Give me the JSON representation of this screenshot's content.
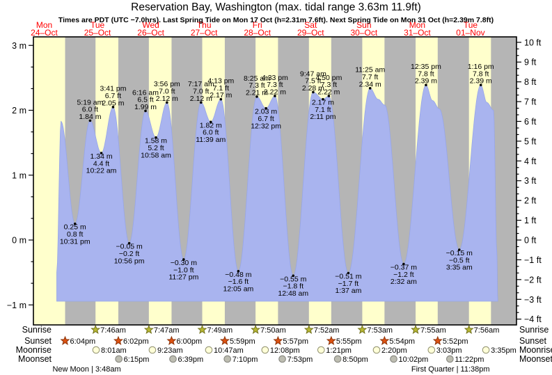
{
  "title": "Reservation Bay, Washington (max. tidal range 3.63m 11.9ft)",
  "subtitle": "Times are PDT (UTC −7.0hrs). Last Spring Tide on Mon 17 Oct (h=2.31m 7.6ft). Next Spring Tide on Mon 31 Oct (h=2.39m 7.8ft)",
  "colors": {
    "day_band": "#ffffcc",
    "night_band": "#b5b5b5",
    "tide_fill": "#a9b4ef",
    "tide_edge": "#97a6e8",
    "date_label": "#ff0000",
    "text": "#000000",
    "sunrise_star_fill": "#b8b832",
    "sunrise_star_stroke": "#71711c",
    "sunset_star_fill": "#dd5212",
    "sunset_star_stroke": "#8b3208",
    "moonrise_circle_fill": "#ffffd8",
    "moonrise_circle_stroke": "#8f8f6e",
    "moonset_circle_fill": "#bdbdb1",
    "moonset_circle_stroke": "#80807a"
  },
  "day_labels": [
    {
      "name": "Mon",
      "date": "24–Oct"
    },
    {
      "name": "Tue",
      "date": "25–Oct"
    },
    {
      "name": "Wed",
      "date": "26–Oct"
    },
    {
      "name": "Thu",
      "date": "27–Oct"
    },
    {
      "name": "Fri",
      "date": "28–Oct"
    },
    {
      "name": "Sat",
      "date": "29–Oct"
    },
    {
      "name": "Sun",
      "date": "30–Oct"
    },
    {
      "name": "Mon",
      "date": "31–Oct"
    },
    {
      "name": "Tue",
      "date": "01–Nov"
    }
  ],
  "axes": {
    "left_ticks": [
      {
        "v": 3,
        "label": "3 m"
      },
      {
        "v": 2,
        "label": "2 m"
      },
      {
        "v": 1,
        "label": "1 m"
      },
      {
        "v": 0,
        "label": "0 m"
      },
      {
        "v": -1,
        "label": "−1 m"
      }
    ],
    "right_ticks": [
      {
        "v": 10,
        "label": "10 ft"
      },
      {
        "v": 9,
        "label": "9 ft"
      },
      {
        "v": 8,
        "label": "8 ft"
      },
      {
        "v": 7,
        "label": "7 ft"
      },
      {
        "v": 6,
        "label": "6 ft"
      },
      {
        "v": 5,
        "label": "5 ft"
      },
      {
        "v": 4,
        "label": "4 ft"
      },
      {
        "v": 3,
        "label": "3 ft"
      },
      {
        "v": 2,
        "label": "2 ft"
      },
      {
        "v": 1,
        "label": "1 ft"
      },
      {
        "v": 0,
        "label": "0 ft"
      },
      {
        "v": -1,
        "label": "−1 ft"
      },
      {
        "v": -2,
        "label": "−2 ft"
      },
      {
        "v": -3,
        "label": "−3 ft"
      },
      {
        "v": -4,
        "label": "−4 ft"
      }
    ]
  },
  "chart_data": {
    "type": "area",
    "x_axis": "time, Mon 24 Oct through Tue 01 Nov (PDT)",
    "ylabel_left": "height (m)",
    "ylabel_right": "height (ft)",
    "ylim_m": [
      -1.3,
      3.1
    ],
    "tide_events": [
      {
        "day": 0,
        "hour": 14.3,
        "level_m": -0.5,
        "kind": "edge"
      },
      {
        "day": 0,
        "hour": 16.2,
        "level_m": 1.83,
        "kind": "shape"
      },
      {
        "day": 0,
        "hour": 22.52,
        "level_m": 0.25,
        "kind": "low",
        "lines": [
          "0.25 m",
          "0.8 ft",
          "10:31 pm"
        ]
      },
      {
        "day": 1,
        "hour": 5.32,
        "level_m": 1.84,
        "kind": "high",
        "lines": [
          "5:19 am",
          "6.0 ft",
          "1.84 m"
        ]
      },
      {
        "day": 1,
        "hour": 10.37,
        "level_m": 1.34,
        "kind": "low",
        "lines": [
          "1.34 m",
          "4.4 ft",
          "10:22 am"
        ]
      },
      {
        "day": 1,
        "hour": 15.68,
        "level_m": 2.05,
        "kind": "high",
        "lines": [
          "3:41 pm",
          "6.7 ft",
          "2.05 m"
        ]
      },
      {
        "day": 1,
        "hour": 22.93,
        "level_m": -0.05,
        "kind": "low",
        "lines": [
          "−0.05 m",
          "−0.2 ft",
          "10:56 pm"
        ]
      },
      {
        "day": 2,
        "hour": 6.27,
        "level_m": 1.99,
        "kind": "high",
        "lines": [
          "6:16 am",
          "6.5 ft",
          "1.99 m"
        ]
      },
      {
        "day": 2,
        "hour": 10.97,
        "level_m": 1.58,
        "kind": "low",
        "lines": [
          "1.58 m",
          "5.2 ft",
          "10:58 am"
        ]
      },
      {
        "day": 2,
        "hour": 15.93,
        "level_m": 2.12,
        "kind": "high",
        "lines": [
          "3:56 pm",
          "7.0 ft",
          "2.12 m"
        ]
      },
      {
        "day": 2,
        "hour": 23.45,
        "level_m": -0.3,
        "kind": "low",
        "lines": [
          "−0.30 m",
          "−1.0 ft",
          "11:27 pm"
        ]
      },
      {
        "day": 3,
        "hour": 7.28,
        "level_m": 2.12,
        "kind": "high",
        "lines": [
          "7:17 am",
          "7.0 ft",
          "2.12 m"
        ]
      },
      {
        "day": 3,
        "hour": 11.65,
        "level_m": 1.82,
        "kind": "low",
        "lines": [
          "1.82 m",
          "6.0 ft",
          "11:39 am"
        ]
      },
      {
        "day": 3,
        "hour": 16.22,
        "level_m": 2.17,
        "kind": "high",
        "lines": [
          "4:13 pm",
          "7.1 ft",
          "2.17 m"
        ]
      },
      {
        "day": 4,
        "hour": 0.08,
        "level_m": -0.48,
        "kind": "low",
        "lines": [
          "−0.48 m",
          "−1.6 ft",
          "12:05 am"
        ]
      },
      {
        "day": 4,
        "hour": 8.42,
        "level_m": 2.21,
        "kind": "high",
        "lines": [
          "8:25 am",
          "7.3 ft",
          "2.21 m"
        ]
      },
      {
        "day": 4,
        "hour": 12.53,
        "level_m": 2.03,
        "kind": "low",
        "lines": [
          "2.03 m",
          "6.7 ft",
          "12:32 pm"
        ]
      },
      {
        "day": 4,
        "hour": 16.55,
        "level_m": 2.22,
        "kind": "high",
        "lines": [
          "4:33 pm",
          "7.3 ft",
          "2.22 m"
        ]
      },
      {
        "day": 5,
        "hour": 0.8,
        "level_m": -0.55,
        "kind": "low",
        "lines": [
          "−0.55 m",
          "−1.8 ft",
          "12:48 am"
        ]
      },
      {
        "day": 5,
        "hour": 9.78,
        "level_m": 2.28,
        "kind": "high",
        "lines": [
          "9:47 am",
          "7.5 ft",
          "2.28 m"
        ]
      },
      {
        "day": 5,
        "hour": 14.18,
        "level_m": 2.17,
        "kind": "low",
        "lines": [
          "2.17 m",
          "7.1 ft",
          "2:11 pm"
        ]
      },
      {
        "day": 5,
        "hour": 16.83,
        "level_m": 2.22,
        "kind": "high",
        "lines": [
          "4:50 pm",
          "7.3 ft",
          "2.22 m"
        ]
      },
      {
        "day": 6,
        "hour": 1.62,
        "level_m": -0.51,
        "kind": "low",
        "lines": [
          "−0.51 m",
          "−1.7 ft",
          "1:37 am"
        ]
      },
      {
        "day": 6,
        "hour": 11.42,
        "level_m": 2.34,
        "kind": "high",
        "lines": [
          "11:25 am",
          "7.7 ft",
          "2.34 m"
        ]
      },
      {
        "day": 6,
        "hour": 15.0,
        "level_m": 2.17,
        "kind": "shape"
      },
      {
        "day": 6,
        "hour": 18.0,
        "level_m": 2.08,
        "kind": "shape"
      },
      {
        "day": 7,
        "hour": 2.53,
        "level_m": -0.37,
        "kind": "low",
        "lines": [
          "−0.37 m",
          "−1.2 ft",
          "2:32 am"
        ]
      },
      {
        "day": 7,
        "hour": 12.58,
        "level_m": 2.39,
        "kind": "high",
        "lines": [
          "12:35 pm",
          "7.8 ft",
          "2.39 m"
        ]
      },
      {
        "day": 7,
        "hour": 15.5,
        "level_m": 2.15,
        "kind": "shape"
      },
      {
        "day": 7,
        "hour": 18.6,
        "level_m": 2.02,
        "kind": "shape"
      },
      {
        "day": 8,
        "hour": 3.58,
        "level_m": -0.15,
        "kind": "low",
        "lines": [
          "−0.15 m",
          "−0.5 ft",
          "3:35 am"
        ]
      },
      {
        "day": 8,
        "hour": 13.27,
        "level_m": 2.39,
        "kind": "high",
        "lines": [
          "1:16 pm",
          "7.8 ft",
          "2.39 m"
        ]
      },
      {
        "day": 8,
        "hour": 16.0,
        "level_m": 2.12,
        "kind": "shape"
      },
      {
        "day": 8,
        "hour": 19.0,
        "level_m": 2.0,
        "kind": "shape"
      },
      {
        "day": 8,
        "hour": 20.5,
        "level_m": -0.2,
        "kind": "shape"
      },
      {
        "day": 8,
        "hour": 20.9,
        "level_m": -0.9,
        "kind": "edge"
      }
    ]
  },
  "sun_moon": {
    "rows": [
      {
        "id": "sunrise",
        "label": "Sunrise",
        "icon": "sunrise-star",
        "events": [
          {
            "day": 1,
            "time": "7:46am",
            "hour": 7.767
          },
          {
            "day": 2,
            "time": "7:47am",
            "hour": 7.783
          },
          {
            "day": 3,
            "time": "7:49am",
            "hour": 7.817
          },
          {
            "day": 4,
            "time": "7:50am",
            "hour": 7.833
          },
          {
            "day": 5,
            "time": "7:52am",
            "hour": 7.867
          },
          {
            "day": 6,
            "time": "7:53am",
            "hour": 7.883
          },
          {
            "day": 7,
            "time": "7:55am",
            "hour": 7.917
          },
          {
            "day": 8,
            "time": "7:56am",
            "hour": 7.933
          }
        ]
      },
      {
        "id": "sunset",
        "label": "Sunset",
        "icon": "sunset-star",
        "events": [
          {
            "day": 0,
            "time": "6:04pm",
            "hour": 18.067
          },
          {
            "day": 1,
            "time": "6:02pm",
            "hour": 18.033
          },
          {
            "day": 2,
            "time": "6:00pm",
            "hour": 18.0
          },
          {
            "day": 3,
            "time": "5:59pm",
            "hour": 17.983
          },
          {
            "day": 4,
            "time": "5:57pm",
            "hour": 17.95
          },
          {
            "day": 5,
            "time": "5:55pm",
            "hour": 17.917
          },
          {
            "day": 6,
            "time": "5:54pm",
            "hour": 17.9
          },
          {
            "day": 7,
            "time": "5:52pm",
            "hour": 17.867
          }
        ]
      },
      {
        "id": "moonrise",
        "label": "Moonrise",
        "icon": "moonrise-circle",
        "events": [
          {
            "day": 1,
            "time": "8:01am",
            "hour": 8.017
          },
          {
            "day": 2,
            "time": "9:23am",
            "hour": 9.383
          },
          {
            "day": 3,
            "time": "10:47am",
            "hour": 10.783
          },
          {
            "day": 4,
            "time": "12:08pm",
            "hour": 12.133
          },
          {
            "day": 5,
            "time": "1:21pm",
            "hour": 13.35
          },
          {
            "day": 6,
            "time": "2:20pm",
            "hour": 14.333
          },
          {
            "day": 7,
            "time": "3:03pm",
            "hour": 15.05
          },
          {
            "day": 8,
            "time": "3:35pm",
            "hour": 15.583
          }
        ]
      },
      {
        "id": "moonset",
        "label": "Moonset",
        "icon": "moonset-circle",
        "events": [
          {
            "day": 1,
            "time": "6:15pm",
            "hour": 18.25
          },
          {
            "day": 2,
            "time": "6:39pm",
            "hour": 18.65
          },
          {
            "day": 3,
            "time": "7:10pm",
            "hour": 19.167
          },
          {
            "day": 4,
            "time": "7:53pm",
            "hour": 19.883
          },
          {
            "day": 5,
            "time": "8:50pm",
            "hour": 20.833
          },
          {
            "day": 6,
            "time": "10:02pm",
            "hour": 22.033
          },
          {
            "day": 7,
            "time": "11:22pm",
            "hour": 23.367
          }
        ]
      }
    ],
    "phases": [
      {
        "label": "New Moon | 3:48am",
        "day": 1,
        "hour": 3.8
      },
      {
        "label": "First Quarter | 11:38pm",
        "day": 7,
        "hour": 23.633
      }
    ],
    "final_night_band_start": {
      "day": 8,
      "hour": 17.85
    }
  }
}
